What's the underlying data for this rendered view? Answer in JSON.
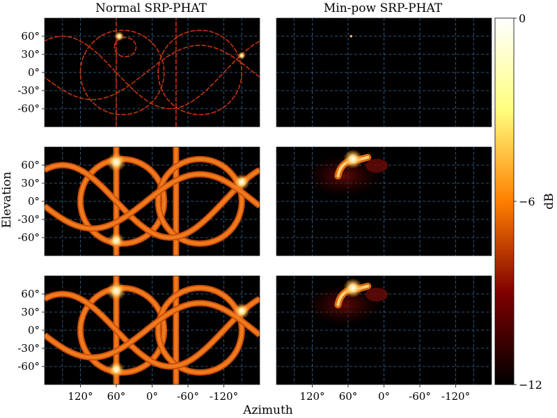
{
  "chart_data": {
    "type": "heatmap",
    "columns": [
      "Normal SRP-PHAT",
      "Min-pow SRP-PHAT"
    ],
    "xlabel": "Azimuth",
    "ylabel": "Elevation",
    "x_ticks": [
      "120°",
      "60°",
      "0°",
      "-60°",
      "-120°"
    ],
    "x_tick_values": [
      120,
      60,
      0,
      -60,
      -120
    ],
    "y_ticks": [
      "60°",
      "30°",
      "0°",
      "-30°",
      "-60°"
    ],
    "y_tick_values": [
      60,
      30,
      0,
      -30,
      -60
    ],
    "xlim": [
      180,
      -180
    ],
    "ylim": [
      -90,
      90
    ],
    "grid": true,
    "colormap": "afmhot",
    "colorbar": {
      "label": "dB",
      "ticks": [
        "0",
        "−6",
        "−12"
      ],
      "tick_values": [
        0,
        -6,
        -12
      ],
      "range": [
        -12,
        0
      ]
    },
    "grid_color": "#3f6e9b",
    "background_color": "#000000",
    "panels": [
      {
        "row": 0,
        "col": 0,
        "style": "thin",
        "curves": [
          {
            "kind": "meridian",
            "az": 60
          },
          {
            "kind": "meridian",
            "az": -40
          },
          {
            "kind": "ellipse",
            "az": 50,
            "el": 0,
            "ra": 70,
            "re": 70
          },
          {
            "kind": "ellipse",
            "az": -80,
            "el": 0,
            "ra": 70,
            "re": 70
          },
          {
            "kind": "wave",
            "amp": 60,
            "phase": 60
          },
          {
            "kind": "wave",
            "amp": 45,
            "phase": -170
          },
          {
            "kind": "ring",
            "az": 45,
            "el": 42,
            "ra": 18,
            "re": 16
          }
        ],
        "peaks": [
          {
            "az": 55,
            "el": 60,
            "level": 1
          },
          {
            "az": -150,
            "el": 28,
            "level": 0.8
          }
        ]
      },
      {
        "row": 0,
        "col": 1,
        "style": "minpow",
        "curves": [],
        "peaks": [
          {
            "az": 55,
            "el": 60,
            "level": 1
          }
        ]
      },
      {
        "row": 1,
        "col": 0,
        "style": "thick",
        "curves": [
          {
            "kind": "meridian",
            "az": 60
          },
          {
            "kind": "meridian",
            "az": -40
          },
          {
            "kind": "ellipse",
            "az": 50,
            "el": 0,
            "ra": 70,
            "re": 70
          },
          {
            "kind": "ellipse",
            "az": -80,
            "el": 0,
            "ra": 70,
            "re": 70
          },
          {
            "kind": "wave",
            "amp": 60,
            "phase": 60
          },
          {
            "kind": "wave",
            "amp": 45,
            "phase": -170
          }
        ],
        "peaks": [
          {
            "az": 60,
            "el": 65,
            "level": 1
          },
          {
            "az": 60,
            "el": -65,
            "level": 0.85
          },
          {
            "az": -150,
            "el": 32,
            "level": 0.85
          }
        ]
      },
      {
        "row": 1,
        "col": 1,
        "style": "minpow",
        "arcs": [
          {
            "az": 52,
            "el": 67,
            "level": 1
          }
        ],
        "peaks": [
          {
            "az": 52,
            "el": 70,
            "level": 1
          }
        ]
      },
      {
        "row": 2,
        "col": 0,
        "style": "thick",
        "curves": [
          {
            "kind": "meridian",
            "az": 60
          },
          {
            "kind": "meridian",
            "az": -40
          },
          {
            "kind": "ellipse",
            "az": 50,
            "el": 0,
            "ra": 70,
            "re": 70
          },
          {
            "kind": "ellipse",
            "az": -80,
            "el": 0,
            "ra": 70,
            "re": 70
          },
          {
            "kind": "wave",
            "amp": 60,
            "phase": 60
          },
          {
            "kind": "wave",
            "amp": 45,
            "phase": -170
          }
        ],
        "peaks": [
          {
            "az": 60,
            "el": 65,
            "level": 1
          },
          {
            "az": 60,
            "el": -65,
            "level": 0.85
          },
          {
            "az": -150,
            "el": 32,
            "level": 0.85
          }
        ]
      },
      {
        "row": 2,
        "col": 1,
        "style": "minpow",
        "arcs": [
          {
            "az": 52,
            "el": 67,
            "level": 1
          }
        ],
        "peaks": [
          {
            "az": 52,
            "el": 70,
            "level": 1
          }
        ]
      }
    ]
  }
}
